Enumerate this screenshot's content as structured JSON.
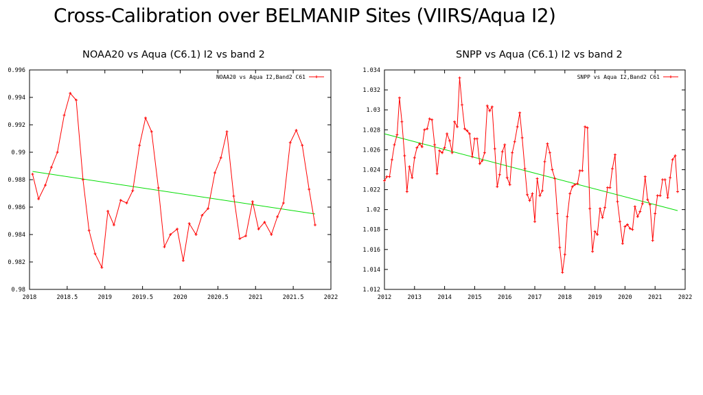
{
  "slide": {
    "title": "Cross-Calibration over BELMANIP Sites  (VIIRS/Aqua I2)"
  },
  "colors": {
    "series": "#ff0000",
    "trend": "#00dd00",
    "axis": "#000000",
    "background": "#ffffff"
  },
  "chart_data": [
    {
      "type": "line",
      "title": "NOAA20 vs Aqua (C6.1) I2 vs band 2",
      "xlabel": "",
      "ylabel": "",
      "xlim": [
        2018,
        2022
      ],
      "ylim": [
        0.98,
        0.996
      ],
      "xticks": [
        2018,
        2018.5,
        2019,
        2019.5,
        2020,
        2020.5,
        2021,
        2021.5,
        2022
      ],
      "xtick_labels": [
        "2018",
        "2018.5",
        "2019",
        "2019.5",
        "2020",
        "2020.5",
        "2021",
        "2021.5",
        "2022"
      ],
      "yticks": [
        0.98,
        0.982,
        0.984,
        0.986,
        0.988,
        0.99,
        0.992,
        0.994,
        0.996
      ],
      "ytick_labels": [
        "0.98",
        "0.982",
        "0.984",
        "0.986",
        "0.988",
        "0.99",
        "0.992",
        "0.994",
        "0.996"
      ],
      "grid": false,
      "legend_position": "top-right",
      "series": [
        {
          "name": "NOAA20 vs Aqua I2,Band2 C61",
          "x": [
            2018.04,
            2018.12,
            2018.21,
            2018.29,
            2018.37,
            2018.46,
            2018.54,
            2018.62,
            2018.71,
            2018.79,
            2018.87,
            2018.96,
            2019.04,
            2019.12,
            2019.21,
            2019.29,
            2019.37,
            2019.46,
            2019.54,
            2019.62,
            2019.71,
            2019.79,
            2019.87,
            2019.96,
            2020.04,
            2020.12,
            2020.21,
            2020.29,
            2020.37,
            2020.46,
            2020.54,
            2020.62,
            2020.71,
            2020.79,
            2020.87,
            2020.96,
            2021.04,
            2021.12,
            2021.21,
            2021.29,
            2021.37,
            2021.46,
            2021.54,
            2021.62,
            2021.71,
            2021.79
          ],
          "y": [
            0.9884,
            0.9866,
            0.9876,
            0.9889,
            0.99,
            0.9927,
            0.9943,
            0.9938,
            0.988,
            0.9843,
            0.9826,
            0.9816,
            0.9857,
            0.9847,
            0.9865,
            0.9863,
            0.9872,
            0.9905,
            0.9925,
            0.9915,
            0.9874,
            0.9831,
            0.984,
            0.9844,
            0.9821,
            0.9848,
            0.984,
            0.9854,
            0.9859,
            0.9885,
            0.9896,
            0.9915,
            0.9868,
            0.9837,
            0.9839,
            0.9864,
            0.9844,
            0.9849,
            0.984,
            0.9853,
            0.9863,
            0.9907,
            0.9916,
            0.9905,
            0.9873,
            0.9847
          ]
        },
        {
          "name": "",
          "x": [
            2018.04,
            2021.79
          ],
          "y": [
            0.9886,
            0.9855
          ]
        }
      ]
    },
    {
      "type": "line",
      "title": "SNPP vs Aqua (C6.1) I2 vs band 2",
      "xlabel": "",
      "ylabel": "",
      "xlim": [
        2012,
        2022
      ],
      "ylim": [
        1.012,
        1.034
      ],
      "xticks": [
        2012,
        2013,
        2014,
        2015,
        2016,
        2017,
        2018,
        2019,
        2020,
        2021,
        2022
      ],
      "xtick_labels": [
        "2012",
        "2013",
        "2014",
        "2015",
        "2016",
        "2017",
        "2018",
        "2019",
        "2020",
        "2021",
        "2022"
      ],
      "yticks": [
        1.012,
        1.014,
        1.016,
        1.018,
        1.02,
        1.022,
        1.024,
        1.026,
        1.028,
        1.03,
        1.032,
        1.034
      ],
      "ytick_labels": [
        "1.012",
        "1.014",
        "1.016",
        "1.018",
        "1.02",
        "1.022",
        "1.024",
        "1.026",
        "1.028",
        "1.03",
        "1.032",
        "1.034"
      ],
      "grid": false,
      "legend_position": "top-right",
      "series": [
        {
          "name": "SNPP vs Aqua I2,Band2 C61",
          "x": [
            2012.0,
            2012.08,
            2012.17,
            2012.25,
            2012.33,
            2012.42,
            2012.5,
            2012.58,
            2012.67,
            2012.75,
            2012.83,
            2012.92,
            2013.0,
            2013.08,
            2013.17,
            2013.25,
            2013.33,
            2013.42,
            2013.5,
            2013.58,
            2013.67,
            2013.75,
            2013.83,
            2013.92,
            2014.0,
            2014.08,
            2014.17,
            2014.25,
            2014.33,
            2014.42,
            2014.5,
            2014.58,
            2014.67,
            2014.75,
            2014.83,
            2014.92,
            2015.0,
            2015.08,
            2015.17,
            2015.25,
            2015.33,
            2015.42,
            2015.5,
            2015.58,
            2015.67,
            2015.75,
            2015.83,
            2015.92,
            2016.0,
            2016.08,
            2016.17,
            2016.25,
            2016.33,
            2016.42,
            2016.5,
            2016.58,
            2016.67,
            2016.75,
            2016.83,
            2016.92,
            2017.0,
            2017.08,
            2017.17,
            2017.25,
            2017.33,
            2017.42,
            2017.5,
            2017.58,
            2017.67,
            2017.75,
            2017.83,
            2017.92,
            2018.0,
            2018.08,
            2018.17,
            2018.25,
            2018.33,
            2018.42,
            2018.5,
            2018.58,
            2018.67,
            2018.75,
            2018.83,
            2018.92,
            2019.0,
            2019.08,
            2019.17,
            2019.25,
            2019.33,
            2019.42,
            2019.5,
            2019.58,
            2019.67,
            2019.75,
            2019.83,
            2019.92,
            2020.0,
            2020.08,
            2020.17,
            2020.25,
            2020.33,
            2020.42,
            2020.5,
            2020.58,
            2020.67,
            2020.75,
            2020.83,
            2020.92,
            2021.0,
            2021.08,
            2021.17,
            2021.25,
            2021.33,
            2021.42,
            2021.5,
            2021.58,
            2021.67,
            2021.75
          ],
          "y": [
            1.0229,
            1.0233,
            1.0233,
            1.025,
            1.0265,
            1.0275,
            1.0312,
            1.0288,
            1.0254,
            1.0218,
            1.0243,
            1.0232,
            1.0252,
            1.0262,
            1.0266,
            1.0263,
            1.028,
            1.0281,
            1.0291,
            1.029,
            1.0265,
            1.0236,
            1.0259,
            1.0257,
            1.0262,
            1.0276,
            1.0269,
            1.0257,
            1.0288,
            1.0283,
            1.0332,
            1.0305,
            1.0281,
            1.0279,
            1.0276,
            1.0253,
            1.0271,
            1.0271,
            1.0246,
            1.0249,
            1.0257,
            1.0304,
            1.0299,
            1.0303,
            1.0261,
            1.0223,
            1.0235,
            1.0258,
            1.0265,
            1.0232,
            1.0225,
            1.0257,
            1.0268,
            1.0283,
            1.0297,
            1.0272,
            1.0241,
            1.0215,
            1.0209,
            1.0216,
            1.0188,
            1.0231,
            1.0214,
            1.0219,
            1.0248,
            1.0266,
            1.0257,
            1.024,
            1.0231,
            1.0196,
            1.0162,
            1.0137,
            1.0155,
            1.0193,
            1.0216,
            1.0223,
            1.0225,
            1.0226,
            1.0239,
            1.0239,
            1.0283,
            1.0282,
            1.0201,
            1.0158,
            1.0178,
            1.0175,
            1.0201,
            1.0192,
            1.0202,
            1.0222,
            1.0222,
            1.0241,
            1.0255,
            1.0208,
            1.0188,
            1.0166,
            1.0183,
            1.0185,
            1.0181,
            1.018,
            1.0203,
            1.0193,
            1.0198,
            1.0206,
            1.0233,
            1.021,
            1.0205,
            1.0169,
            1.0196,
            1.0214,
            1.0214,
            1.023,
            1.023,
            1.0212,
            1.0232,
            1.025,
            1.0254,
            1.0218
          ]
        },
        {
          "name": "",
          "x": [
            2012.0,
            2021.75
          ],
          "y": [
            1.0276,
            1.0199
          ]
        }
      ]
    }
  ]
}
